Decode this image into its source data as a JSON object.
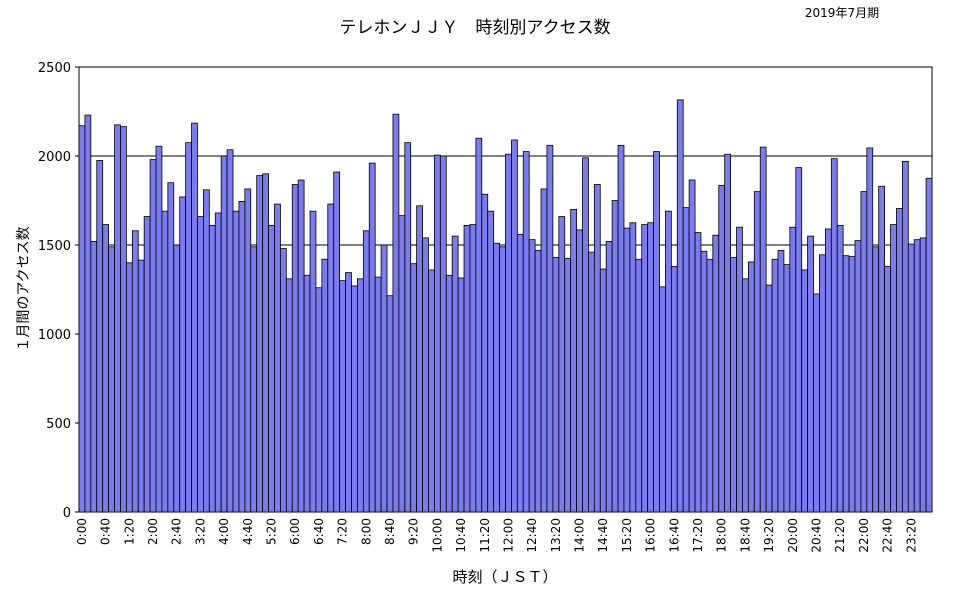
{
  "chart_data": {
    "type": "bar",
    "title": "テレホンＪＪＹ　時刻別アクセス数",
    "subtitle": "2019年7月期",
    "xlabel": "時刻（ＪＳＴ）",
    "ylabel": "１月間のアクセス数",
    "ylim": [
      0,
      2500
    ],
    "yticks": [
      0,
      500,
      1000,
      1500,
      2000,
      2500
    ],
    "xtick_labels": [
      "0:00",
      "0:40",
      "1:20",
      "2:00",
      "2:40",
      "3:20",
      "4:00",
      "4:40",
      "5:20",
      "6:00",
      "6:40",
      "7:20",
      "8:00",
      "8:40",
      "9:20",
      "10:00",
      "10:40",
      "11:20",
      "12:00",
      "12:40",
      "13:20",
      "14:00",
      "14:40",
      "15:20",
      "16:00",
      "16:40",
      "17:20",
      "18:00",
      "18:40",
      "19:20",
      "20:00",
      "20:40",
      "21:20",
      "22:00",
      "22:40",
      "23:20"
    ],
    "xtick_every": 4,
    "interval_minutes": 10,
    "gridlines_y": [
      1500,
      2000
    ],
    "bar_color": "#7b7bf0",
    "values": [
      2170,
      2230,
      1520,
      1975,
      1615,
      1490,
      2175,
      2165,
      1400,
      1580,
      1415,
      1660,
      1980,
      2055,
      1690,
      1850,
      1500,
      1770,
      2075,
      2185,
      1660,
      1810,
      1610,
      1680,
      2000,
      2035,
      1690,
      1745,
      1815,
      1490,
      1890,
      1900,
      1610,
      1730,
      1480,
      1310,
      1840,
      1865,
      1330,
      1690,
      1260,
      1420,
      1730,
      1910,
      1300,
      1345,
      1270,
      1310,
      1580,
      1960,
      1320,
      1500,
      1215,
      2235,
      1665,
      2075,
      1395,
      1720,
      1540,
      1360,
      2005,
      2000,
      1330,
      1550,
      1315,
      1610,
      1615,
      2100,
      1785,
      1690,
      1510,
      1490,
      2010,
      2090,
      1560,
      2025,
      1530,
      1470,
      1815,
      2060,
      1430,
      1660,
      1425,
      1700,
      1585,
      1990,
      1460,
      1840,
      1365,
      1520,
      1750,
      2060,
      1595,
      1625,
      1420,
      1615,
      1625,
      2025,
      1265,
      1690,
      1380,
      2315,
      1710,
      1865,
      1570,
      1465,
      1420,
      1555,
      1835,
      2010,
      1430,
      1600,
      1310,
      1405,
      1800,
      2050,
      1275,
      1420,
      1470,
      1390,
      1600,
      1935,
      1360,
      1550,
      1225,
      1445,
      1590,
      1985,
      1610,
      1440,
      1435,
      1525,
      1800,
      2045,
      1490,
      1830,
      1380,
      1615,
      1705,
      1970,
      1505,
      1530,
      1540,
      1875
    ]
  }
}
